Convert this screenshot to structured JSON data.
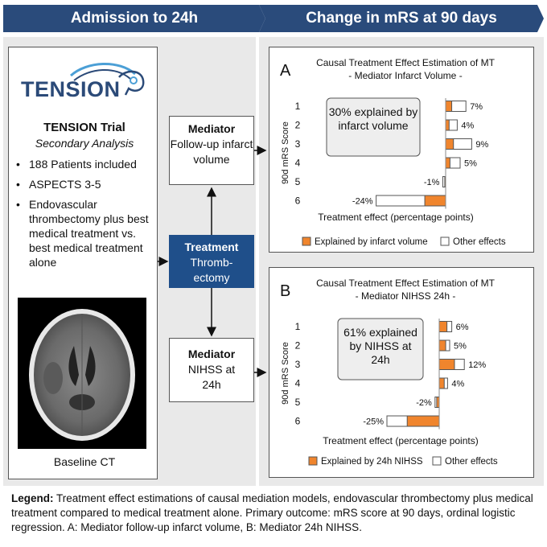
{
  "header": {
    "left": "Admission to 24h",
    "right": "Change in mRS at 90 days"
  },
  "trial": {
    "logo": "TENSION",
    "title": "TENSION Trial",
    "subtitle": "Secondary Analysis",
    "bullets": [
      "188 Patients included",
      "ASPECTS 3-5",
      "Endovascular thrombectomy plus best medical treatment vs. best medical treatment alone"
    ],
    "ct_caption": "Baseline CT"
  },
  "nodes": {
    "mediator_a": {
      "head": "Mediator",
      "body": "Follow-up infarct volume"
    },
    "treatment": {
      "head": "Treatment",
      "body": "Thromb-ectomy"
    },
    "mediator_b": {
      "head": "Mediator",
      "body": "NIHSS at 24h"
    }
  },
  "colors": {
    "banner": "#2a4b7b",
    "treatment_box": "#1f4f8a",
    "explained": "#f0852d",
    "other": "#ffffff"
  },
  "chart_data": [
    {
      "type": "bar",
      "panel_letter": "A",
      "title": "Causal Treatment Effect Estimation of MT",
      "subtitle": "- Mediator Infarct Volume -",
      "annotation": "30% explained by infarct volume",
      "xlabel": "Treatment effect (percentage points)",
      "ylabel": "90d mRS Score",
      "categories": [
        "1",
        "2",
        "3",
        "4",
        "5",
        "6"
      ],
      "total": [
        7,
        4,
        9,
        5,
        -1,
        -24
      ],
      "explained": [
        2.1,
        1.2,
        2.7,
        1.5,
        -0.3,
        -7.2
      ],
      "value_labels": [
        "7%",
        "4%",
        "9%",
        "5%",
        "-1%",
        "-24%"
      ],
      "legend": [
        "Explained by infarct volume",
        "Other effects"
      ]
    },
    {
      "type": "bar",
      "panel_letter": "B",
      "title": "Causal Treatment Effect Estimation of MT",
      "subtitle": "- Mediator NIHSS 24h -",
      "annotation": "61% explained by NIHSS at 24h",
      "xlabel": "Treatment effect (percentage points)",
      "ylabel": "90d mRS Score",
      "categories": [
        "1",
        "2",
        "3",
        "4",
        "5",
        "6"
      ],
      "total": [
        6,
        5,
        12,
        4,
        -2,
        -25
      ],
      "explained": [
        3.7,
        3.1,
        7.3,
        2.4,
        -1.2,
        -15.3
      ],
      "value_labels": [
        "6%",
        "5%",
        "12%",
        "4%",
        "-2%",
        "-25%"
      ],
      "legend": [
        "Explained by 24h NIHSS",
        "Other effects"
      ]
    }
  ],
  "legend_text": {
    "label": "Legend:",
    "body": "Treatment effect estimations of causal mediation models, endovascular thrombectomy plus medical treatment compared to medical treatment alone. Primary outcome: mRS score at 90 days, ordinal logistic regression. A: Mediator follow-up infarct volume, B: Mediator 24h NIHSS."
  }
}
